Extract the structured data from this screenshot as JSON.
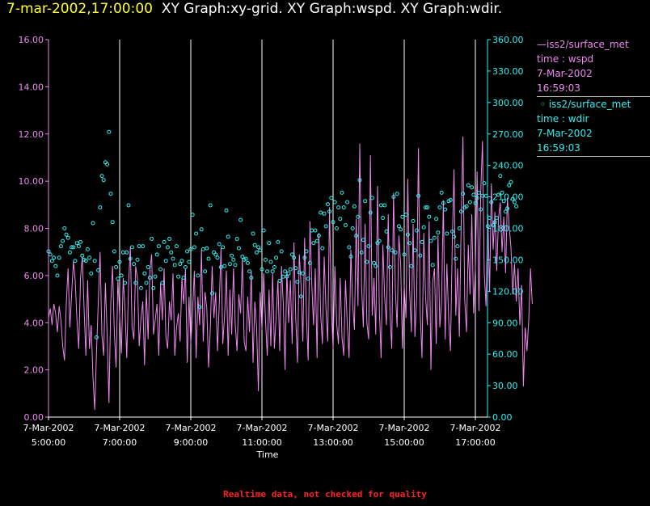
{
  "header": {
    "date_time": "7-mar-2002,17:00:00",
    "graphs_text": "XY Graph:xy-grid.  XY Graph:wspd.  XY Graph:wdir."
  },
  "legend": {
    "wspd": {
      "series": "iss2/surface_met",
      "vars": "time : wspd",
      "date": "7-Mar-2002",
      "time": "16:59:03"
    },
    "wdir": {
      "series": "iss2/surface_met",
      "vars": "time : wdir",
      "date": "7-Mar-2002",
      "time": "16:59:03"
    }
  },
  "footer": {
    "note": "Realtime data, not checked for quality"
  },
  "colors": {
    "wspd": "#ee88ee",
    "wdir": "#33eeee",
    "grid": "#ffffff",
    "title_date": "#ffff33",
    "footer": "#ff2222"
  },
  "chart_data": {
    "type": "line",
    "title": "XY Graph:xy-grid.  XY Graph:wspd.  XY Graph:wdir.",
    "xlabel": "Time",
    "x_range_hours": [
      5.0,
      17.1
    ],
    "x_ticks": [
      {
        "hour": 5,
        "date": "7-Mar-2002",
        "time": "5:00:00"
      },
      {
        "hour": 7,
        "date": "7-Mar-2002",
        "time": "7:00:00"
      },
      {
        "hour": 9,
        "date": "7-Mar-2002",
        "time": "9:00:00"
      },
      {
        "hour": 11,
        "date": "7-Mar-2002",
        "time": "11:00:00"
      },
      {
        "hour": 13,
        "date": "7-Mar-2002",
        "time": "13:00:00"
      },
      {
        "hour": 15,
        "date": "7-Mar-2002",
        "time": "15:00:00"
      },
      {
        "hour": 17,
        "date": "7-Mar-2002",
        "time": "17:00:00"
      }
    ],
    "grid_x_hours": [
      7,
      9,
      11,
      13,
      15,
      17
    ],
    "left_axis": {
      "series": "wspd",
      "ylim": [
        0,
        16
      ],
      "ticks": [
        "0.00",
        "2.00",
        "4.00",
        "6.00",
        "8.00",
        "10.00",
        "12.00",
        "14.00",
        "16.00"
      ],
      "tick_values": [
        0,
        2,
        4,
        6,
        8,
        10,
        12,
        14,
        16
      ]
    },
    "right_axis": {
      "series": "wdir",
      "ylim": [
        0,
        360
      ],
      "ticks": [
        "0.00",
        "30.00",
        "60.00",
        "90.00",
        "120.00",
        "150.00",
        "180.00",
        "210.00",
        "240.00",
        "270.00",
        "300.00",
        "330.00",
        "360.00"
      ],
      "tick_values": [
        0,
        30,
        60,
        90,
        120,
        150,
        180,
        210,
        240,
        270,
        300,
        330,
        360
      ]
    },
    "series": [
      {
        "name": "wspd",
        "kind": "line",
        "axis": "left",
        "sample_hours": 0.05,
        "x_start_hour": 5.0,
        "values": [
          4.2,
          4.6,
          3.9,
          4.8,
          4.4,
          3.6,
          4.7,
          4.1,
          3.0,
          2.4,
          4.8,
          6.3,
          3.8,
          5.2,
          6.6,
          5.8,
          4.1,
          2.9,
          5.9,
          6.8,
          4.6,
          2.6,
          5.8,
          2.9,
          3.9,
          1.7,
          0.3,
          2.8,
          4.9,
          7.0,
          3.5,
          2.6,
          5.7,
          3.4,
          0.6,
          4.8,
          6.4,
          3.6,
          2.1,
          5.8,
          4.3,
          2.7,
          5.9,
          4.6,
          2.5,
          5.6,
          7.2,
          3.8,
          3.3,
          6.4,
          5.9,
          3.0,
          4.2,
          4.9,
          2.2,
          5.4,
          3.3,
          6.2,
          6.9,
          3.5,
          4.1,
          4.8,
          2.6,
          5.7,
          4.1,
          6.3,
          3.4,
          2.9,
          4.9,
          4.1,
          6.1,
          2.6,
          3.8,
          4.4,
          3.2,
          5.9,
          4.8,
          6.3,
          2.3,
          5.1,
          3.1,
          4.5,
          6.2,
          2.5,
          5.1,
          3.9,
          7.1,
          3.2,
          5.3,
          4.6,
          2.1,
          3.8,
          6.4,
          4.2,
          5.3,
          2.8,
          4.8,
          7.2,
          3.1,
          4.3,
          6.2,
          2.6,
          5.4,
          3.5,
          6.3,
          3.9,
          2.8,
          5.2,
          4.4,
          6.7,
          3.2,
          2.8,
          5.1,
          3.6,
          6.2,
          2.3,
          4.9,
          3.8,
          1.1,
          5.3,
          3.7,
          6.1,
          4.1,
          2.6,
          5.4,
          3.0,
          6.1,
          2.9,
          4.3,
          5.8,
          2.8,
          6.4,
          4.8,
          2.0,
          6.2,
          4.0,
          5.8,
          3.1,
          7.4,
          4.2,
          2.3,
          6.9,
          5.6,
          3.2,
          7.6,
          4.3,
          2.4,
          8.3,
          5.7,
          3.9,
          6.3,
          2.5,
          7.8,
          4.4,
          3.1,
          6.8,
          4.6,
          3.2,
          8.9,
          4.7,
          2.9,
          6.4,
          4.0,
          3.1,
          5.9,
          3.4,
          2.6,
          5.8,
          3.9,
          2.5,
          7.1,
          4.8,
          3.7,
          8.4,
          4.7,
          11.6,
          5.6,
          3.8,
          8.2,
          4.0,
          3.3,
          11.1,
          4.3,
          5.9,
          3.5,
          9.8,
          4.6,
          2.5,
          7.3,
          5.1,
          3.9,
          8.6,
          4.4,
          2.9,
          9.5,
          5.4,
          3.8,
          7.7,
          6.5,
          2.9,
          5.6,
          4.2,
          10.1,
          5.4,
          3.6,
          8.2,
          3.4,
          5.1,
          11.4,
          4.4,
          2.5,
          7.8,
          5.1,
          3.9,
          8.3,
          2.0,
          5.7,
          6.3,
          3.1,
          7.7,
          3.8,
          4.9,
          9.2,
          3.3,
          6.5,
          4.1,
          2.8,
          7.3,
          10.5,
          4.3,
          6.3,
          3.4,
          8.1,
          11.9,
          5.0,
          3.6,
          7.3,
          5.2,
          8.6,
          4.4,
          6.3,
          10.4,
          4.5,
          9.5,
          11.7,
          6.1,
          4.7,
          8.6,
          5.3,
          9.9,
          7.1,
          8.7,
          6.2,
          8.4,
          9.1,
          7.0,
          8.5,
          6.1,
          9.3,
          8.1,
          7.2,
          5.2,
          6.5,
          4.9,
          6.3,
          3.9,
          5.6,
          1.3,
          3.8,
          2.8,
          4.1,
          6.3,
          4.8
        ]
      },
      {
        "name": "wdir",
        "kind": "scatter",
        "axis": "right",
        "sample_hours": 0.05,
        "x_start_hour": 5.0,
        "values": [
          158,
          155,
          149,
          152,
          144,
          135,
          152,
          163,
          168,
          180,
          174,
          171,
          157,
          162,
          162,
          149,
          166,
          163,
          167,
          154,
          150,
          149,
          160,
          152,
          137,
          185,
          149,
          76,
          140,
          200,
          230,
          226,
          243,
          241,
          272,
          213,
          186,
          158,
          143,
          132,
          148,
          135,
          157,
          128,
          157,
          202,
          151,
          162,
          146,
          128,
          150,
          163,
          123,
          163,
          137,
          128,
          143,
          133,
          170,
          123,
          134,
          155,
          163,
          141,
          128,
          167,
          149,
          162,
          170,
          157,
          151,
          145,
          163,
          134,
          146,
          149,
          133,
          143,
          158,
          148,
          160,
          193,
          162,
          175,
          135,
          105,
          179,
          160,
          139,
          161,
          151,
          202,
          118,
          157,
          155,
          152,
          165,
          143,
          162,
          144,
          197,
          172,
          146,
          154,
          150,
          145,
          170,
          161,
          188,
          153,
          150,
          151,
          147,
          139,
          133,
          175,
          164,
          157,
          162,
          159,
          141,
          178,
          150,
          139,
          166,
          148,
          139,
          143,
          152,
          167,
          130,
          158,
          134,
          139,
          134,
          137,
          141,
          155,
          152,
          142,
          129,
          138,
          115,
          137,
          152,
          158,
          132,
          147,
          178,
          166,
          178,
          168,
          173,
          195,
          161,
          194,
          182,
          203,
          196,
          209,
          186,
          205,
          180,
          200,
          189,
          214,
          200,
          183,
          205,
          162,
          153,
          180,
          201,
          173,
          191,
          226,
          157,
          169,
          206,
          148,
          163,
          195,
          209,
          147,
          144,
          166,
          168,
          202,
          190,
          202,
          177,
          162,
          143,
          159,
          210,
          157,
          213,
          182,
          179,
          191,
          155,
          193,
          174,
          166,
          144,
          187,
          159,
          178,
          211,
          154,
          167,
          181,
          200,
          200,
          191,
          168,
          145,
          171,
          189,
          176,
          200,
          214,
          204,
          198,
          175,
          206,
          207,
          177,
          172,
          151,
          163,
          180,
          196,
          213,
          200,
          201,
          221,
          205,
          219,
          212,
          204,
          209,
          214,
          198,
          211,
          223,
          211,
          182,
          190,
          205,
          183,
          186,
          190,
          212,
          230,
          214,
          206,
          196,
          199,
          221,
          224,
          208,
          205,
          201
        ]
      }
    ]
  }
}
